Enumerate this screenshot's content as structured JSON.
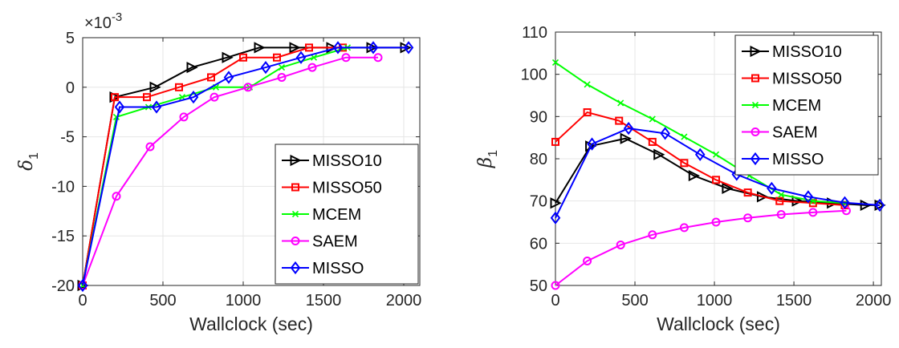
{
  "chart_data": [
    {
      "type": "line",
      "title": "",
      "xlabel": "Wallclock (sec)",
      "ylabel_base": "δ",
      "ylabel_sub": "1",
      "exponent_label": "×10",
      "exponent_power": "-3",
      "xlim": [
        0,
        2100
      ],
      "ylim": [
        -20,
        5
      ],
      "xticks": [
        0,
        500,
        1000,
        1500,
        2000
      ],
      "yticks": [
        5,
        0,
        -5,
        -10,
        -15,
        -20
      ],
      "xtick_labels": [
        "0",
        "500",
        "1000",
        "1500",
        "2000"
      ],
      "ytick_labels": [
        "5",
        "0",
        "-5",
        "-10",
        "-15",
        "-20"
      ],
      "grid": true,
      "legend_position": "lower-right",
      "series": [
        {
          "name": "MISSO10",
          "color": "#000000",
          "marker": "triangle-right",
          "x": [
            0,
            200,
            450,
            680,
            900,
            1100,
            1320,
            1550,
            1800,
            2010
          ],
          "y": [
            -20,
            -1,
            0,
            2,
            3,
            4,
            4,
            4,
            4,
            4
          ]
        },
        {
          "name": "MISSO50",
          "color": "#ff0000",
          "marker": "square",
          "x": [
            0,
            200,
            400,
            600,
            800,
            1000,
            1210,
            1410,
            1620
          ],
          "y": [
            -20,
            -1,
            -1,
            0,
            1,
            3,
            3,
            4,
            4
          ]
        },
        {
          "name": "MCEM",
          "color": "#00ff00",
          "marker": "x",
          "x": [
            0,
            210,
            410,
            620,
            830,
            1040,
            1240,
            1440,
            1650
          ],
          "y": [
            -20,
            -3,
            -2,
            -1,
            0,
            0,
            2,
            3,
            4
          ]
        },
        {
          "name": "SAEM",
          "color": "#ff00ff",
          "marker": "circle",
          "x": [
            0,
            210,
            420,
            630,
            820,
            1030,
            1240,
            1430,
            1640,
            1840
          ],
          "y": [
            -20,
            -11,
            -6,
            -3,
            -1,
            0,
            1,
            2,
            3,
            3
          ]
        },
        {
          "name": "MISSO",
          "color": "#0000ff",
          "marker": "diamond",
          "x": [
            0,
            230,
            460,
            690,
            910,
            1140,
            1360,
            1590,
            1810,
            2030
          ],
          "y": [
            -20,
            -2,
            -2,
            -1,
            1,
            2,
            3,
            4,
            4,
            4
          ]
        }
      ]
    },
    {
      "type": "line",
      "title": "",
      "xlabel": "Wallclock (sec)",
      "ylabel_base": "β",
      "ylabel_sub": "1",
      "xlim": [
        0,
        2050
      ],
      "ylim": [
        50,
        110
      ],
      "xticks": [
        0,
        500,
        1000,
        1500,
        2000
      ],
      "yticks": [
        110,
        100,
        90,
        80,
        70,
        60,
        50
      ],
      "xtick_labels": [
        "0",
        "500",
        "1000",
        "1500",
        "2000"
      ],
      "ytick_labels": [
        "110",
        "100",
        "90",
        "80",
        "70",
        "60",
        "50"
      ],
      "grid": true,
      "legend_position": "top-right",
      "series": [
        {
          "name": "MISSO10",
          "color": "#000000",
          "marker": "triangle-right",
          "x": [
            0,
            220,
            440,
            650,
            870,
            1080,
            1300,
            1520,
            1740,
            1950,
            2040
          ],
          "y": [
            69.5,
            83,
            84.8,
            81,
            76,
            73,
            71,
            70,
            69.5,
            69,
            69
          ]
        },
        {
          "name": "MISSO50",
          "color": "#ff0000",
          "marker": "square",
          "x": [
            0,
            200,
            400,
            610,
            810,
            1010,
            1210,
            1410,
            1620,
            1820
          ],
          "y": [
            84,
            91,
            89,
            84,
            79,
            75,
            72,
            70,
            69.5,
            69
          ]
        },
        {
          "name": "MCEM",
          "color": "#00ff00",
          "marker": "x",
          "x": [
            0,
            200,
            410,
            610,
            810,
            1010,
            1220,
            1420,
            1620,
            1820
          ],
          "y": [
            102.8,
            97.6,
            93.2,
            89.4,
            85.2,
            81,
            76,
            71.5,
            70,
            69.5
          ]
        },
        {
          "name": "SAEM",
          "color": "#ff00ff",
          "marker": "circle",
          "x": [
            0,
            200,
            410,
            610,
            810,
            1010,
            1210,
            1420,
            1620,
            1830
          ],
          "y": [
            50,
            55.8,
            59.6,
            62,
            63.7,
            65,
            66,
            66.8,
            67.3,
            67.7
          ]
        },
        {
          "name": "MISSO",
          "color": "#0000ff",
          "marker": "diamond",
          "x": [
            0,
            230,
            460,
            690,
            910,
            1140,
            1360,
            1590,
            1820,
            2040
          ],
          "y": [
            66,
            83.5,
            87.2,
            86,
            81,
            76.3,
            73,
            71,
            69.6,
            69
          ]
        }
      ]
    }
  ]
}
